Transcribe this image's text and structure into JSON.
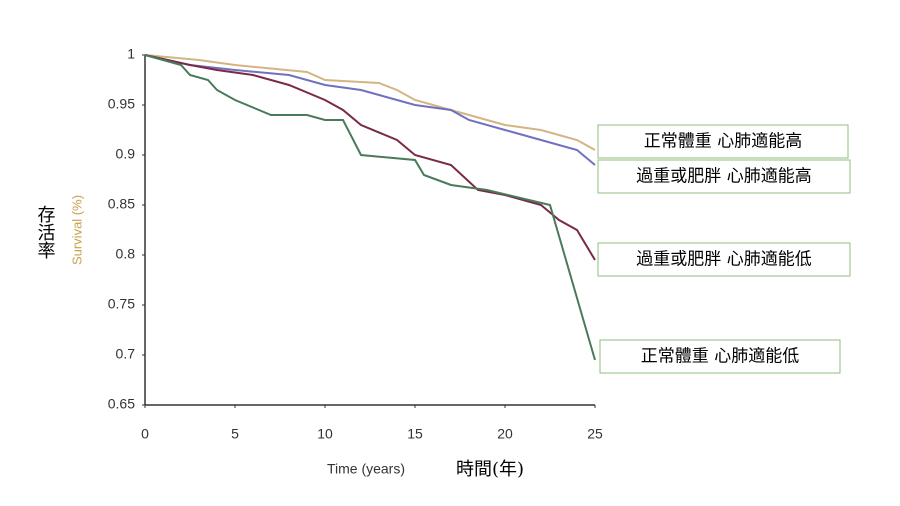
{
  "chart_data": {
    "type": "line",
    "ylabel": "Survival (%)",
    "ylabel_zh": "存活率",
    "xlabel": "Time (years)",
    "xlabel_zh": "時間(年)",
    "xlim": [
      0,
      25
    ],
    "xticks": [
      0,
      5,
      10,
      15,
      20,
      25
    ],
    "ylim": [
      0.65,
      1
    ],
    "yticks": [
      0.65,
      0.7,
      0.75,
      0.8,
      0.85,
      0.9,
      0.95,
      1
    ],
    "grid": false,
    "series": [
      {
        "name": "正常體重  心肺適能高",
        "color": "#d4b483",
        "x": [
          0,
          3,
          5,
          9,
          10,
          13,
          14,
          15,
          18,
          20,
          22,
          24,
          25
        ],
        "values": [
          1,
          0.995,
          0.99,
          0.983,
          0.975,
          0.972,
          0.965,
          0.955,
          0.94,
          0.93,
          0.925,
          0.915,
          0.905
        ]
      },
      {
        "name": "過重或肥胖  心肺適能高",
        "color": "#7070c0",
        "x": [
          0,
          2.5,
          5,
          8,
          10,
          12,
          15,
          17,
          18,
          20,
          22,
          24,
          25
        ],
        "values": [
          1,
          0.99,
          0.985,
          0.98,
          0.97,
          0.965,
          0.95,
          0.945,
          0.935,
          0.925,
          0.915,
          0.905,
          0.89
        ]
      },
      {
        "name": "過重或肥胖  心肺適能低",
        "color": "#7a2a48",
        "x": [
          0,
          2.5,
          4,
          6,
          8,
          10,
          11,
          12,
          14,
          15,
          17,
          18.5,
          20,
          22,
          23,
          24,
          25
        ],
        "values": [
          1,
          0.99,
          0.985,
          0.98,
          0.97,
          0.955,
          0.945,
          0.93,
          0.915,
          0.9,
          0.89,
          0.865,
          0.86,
          0.85,
          0.835,
          0.825,
          0.795
        ]
      },
      {
        "name": "正常體重  心肺適能低",
        "color": "#4a7a5a",
        "x": [
          0,
          2,
          2.5,
          3.5,
          4,
          5,
          7,
          9,
          10,
          11,
          12,
          15,
          15.5,
          17,
          19,
          22.5,
          25
        ],
        "values": [
          1,
          0.99,
          0.98,
          0.975,
          0.965,
          0.955,
          0.94,
          0.94,
          0.935,
          0.935,
          0.9,
          0.895,
          0.88,
          0.87,
          0.865,
          0.85,
          0.695
        ]
      }
    ]
  }
}
